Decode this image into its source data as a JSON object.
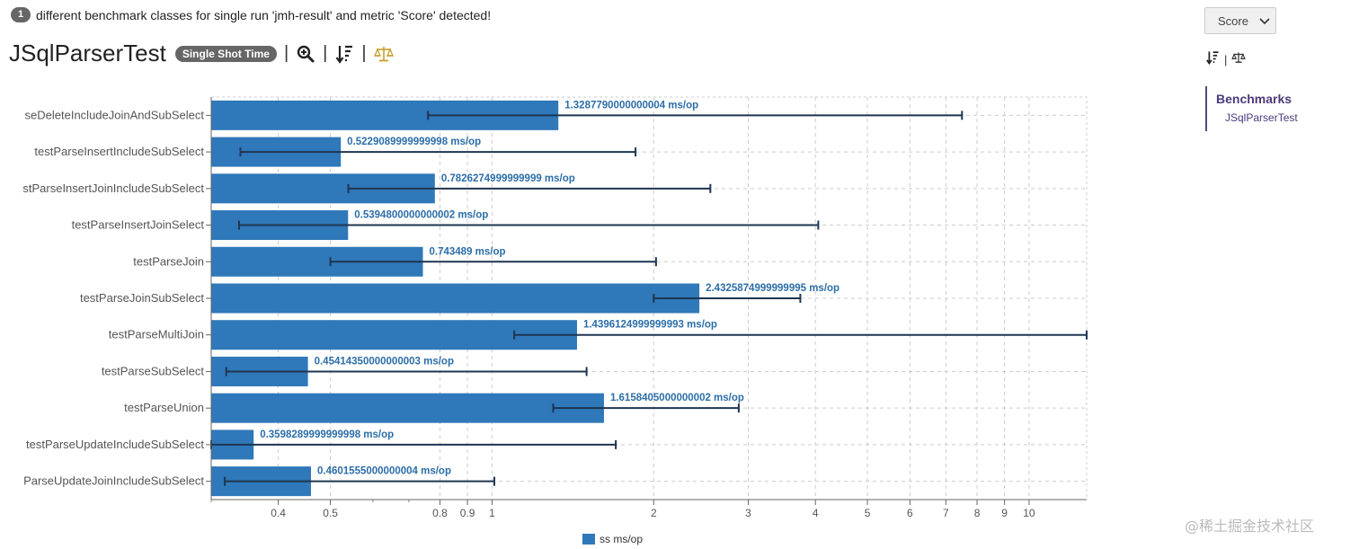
{
  "notice": {
    "count": "1",
    "text": "different benchmark classes for single run 'jmh-result' and metric 'Score' detected!"
  },
  "header": {
    "title": "JSqlParserTest",
    "mode_badge": "Single Shot Time",
    "separator": "|"
  },
  "sidebar": {
    "metric_select": {
      "value": "Score"
    },
    "nav_heading": "Benchmarks",
    "nav_items": [
      "JSqlParserTest"
    ]
  },
  "watermark": "@稀土掘金技术社区",
  "colors": {
    "bar": "#2f78b9",
    "error_bar": "#1f3550",
    "label": "#2c6ea8",
    "grid": "#cccccc",
    "balance_icon": "#c8a030"
  },
  "icons": [
    "zoom-in-icon",
    "sort-icon",
    "balance-scale-icon"
  ],
  "chart_data": {
    "type": "bar",
    "orientation": "horizontal",
    "x_scale": "log",
    "xlim": [
      0.3,
      12.8
    ],
    "x_ticks": [
      0.4,
      0.5,
      0.8,
      0.9,
      1,
      2,
      3,
      4,
      5,
      6,
      7,
      8,
      9,
      10
    ],
    "grid": true,
    "legend": {
      "position": "bottom",
      "label": "ss ms/op"
    },
    "unit": "ms/op",
    "categories": [
      "testParseDeleteIncludeJoinAndSubSelect",
      "testParseInsertIncludeSubSelect",
      "testParseInsertJoinIncludeSubSelect",
      "testParseInsertJoinSelect",
      "testParseJoin",
      "testParseJoinSubSelect",
      "testParseMultiJoin",
      "testParseSubSelect",
      "testParseUnion",
      "testParseUpdateIncludeSubSelect",
      "testParseUpdateJoinIncludeSubSelect"
    ],
    "category_labels": [
      "seDeleteIncludeJoinAndSubSelect",
      "testParseInsertIncludeSubSelect",
      "stParseInsertJoinIncludeSubSelect",
      "testParseInsertJoinSelect",
      "testParseJoin",
      "testParseJoinSubSelect",
      "testParseMultiJoin",
      "testParseSubSelect",
      "testParseUnion",
      "testParseUpdateIncludeSubSelect",
      "ParseUpdateJoinIncludeSubSelect"
    ],
    "values": [
      1.3287790000000004,
      0.5229089999999998,
      0.7826274999999999,
      0.5394800000000002,
      0.743489,
      2.4325874999999995,
      1.4396124999999993,
      0.45414350000000003,
      1.6158405000000002,
      0.3598289999999998,
      0.4601555000000004
    ],
    "value_labels": [
      "1.3287790000000004 ms/op",
      "0.5229089999999998 ms/op",
      "0.7826274999999999 ms/op",
      "0.5394800000000002 ms/op",
      "0.743489 ms/op",
      "2.4325874999999995 ms/op",
      "1.4396124999999993 ms/op",
      "0.45414350000000003 ms/op",
      "1.6158405000000002 ms/op",
      "0.3598289999999998 ms/op",
      "0.4601555000000004 ms/op"
    ],
    "error_low": [
      0.76,
      0.34,
      0.54,
      0.338,
      0.5,
      2.0,
      1.1,
      0.32,
      1.3,
      0.3,
      0.318
    ],
    "error_high": [
      7.5,
      1.85,
      2.55,
      4.05,
      2.02,
      3.75,
      12.8,
      1.5,
      2.88,
      1.7,
      1.01
    ]
  }
}
